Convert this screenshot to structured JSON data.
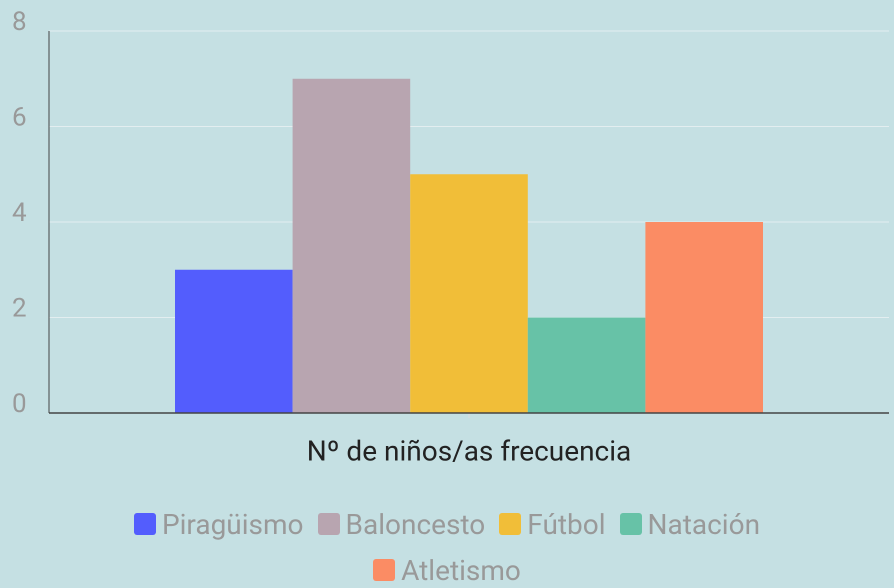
{
  "chart_data": {
    "type": "bar",
    "categories": [
      "Nº de niños/as frecuencia"
    ],
    "series": [
      {
        "name": "Piragüismo",
        "color": "#535dfd",
        "values": [
          3
        ]
      },
      {
        "name": "Baloncesto",
        "color": "#b8a5b0",
        "values": [
          7
        ]
      },
      {
        "name": "Fútbol",
        "color": "#f1be38",
        "values": [
          5
        ]
      },
      {
        "name": "Natación",
        "color": "#67c2a7",
        "values": [
          2
        ]
      },
      {
        "name": "Atletismo",
        "color": "#fb8c64",
        "values": [
          4
        ]
      }
    ],
    "ylim": [
      0,
      8
    ],
    "yticks": [
      0,
      2,
      4,
      6,
      8
    ],
    "grid": true,
    "legend": "bottom"
  }
}
